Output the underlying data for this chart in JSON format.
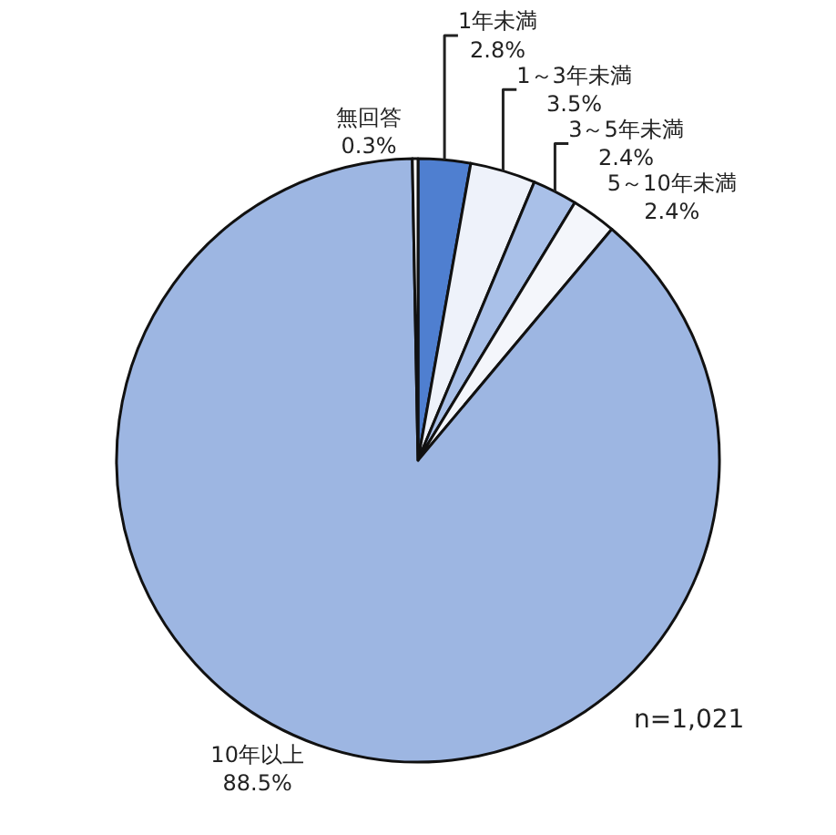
{
  "chart_data": {
    "type": "pie",
    "categories": [
      "1年未満",
      "1～3年未満",
      "3～5年未満",
      "5～10年未満",
      "10年以上",
      "無回答"
    ],
    "values": [
      2.8,
      3.5,
      2.4,
      2.4,
      88.5,
      0.3
    ],
    "value_labels": [
      "2.8%",
      "3.5%",
      "2.4%",
      "2.4%",
      "88.5%",
      "0.3%"
    ],
    "colors": [
      "#4f7fd0",
      "#eef2fa",
      "#a9c0e8",
      "#f4f6fb",
      "#9db6e2",
      "#ffffff"
    ],
    "annotations": [
      "n=1,021"
    ],
    "legend": false
  }
}
